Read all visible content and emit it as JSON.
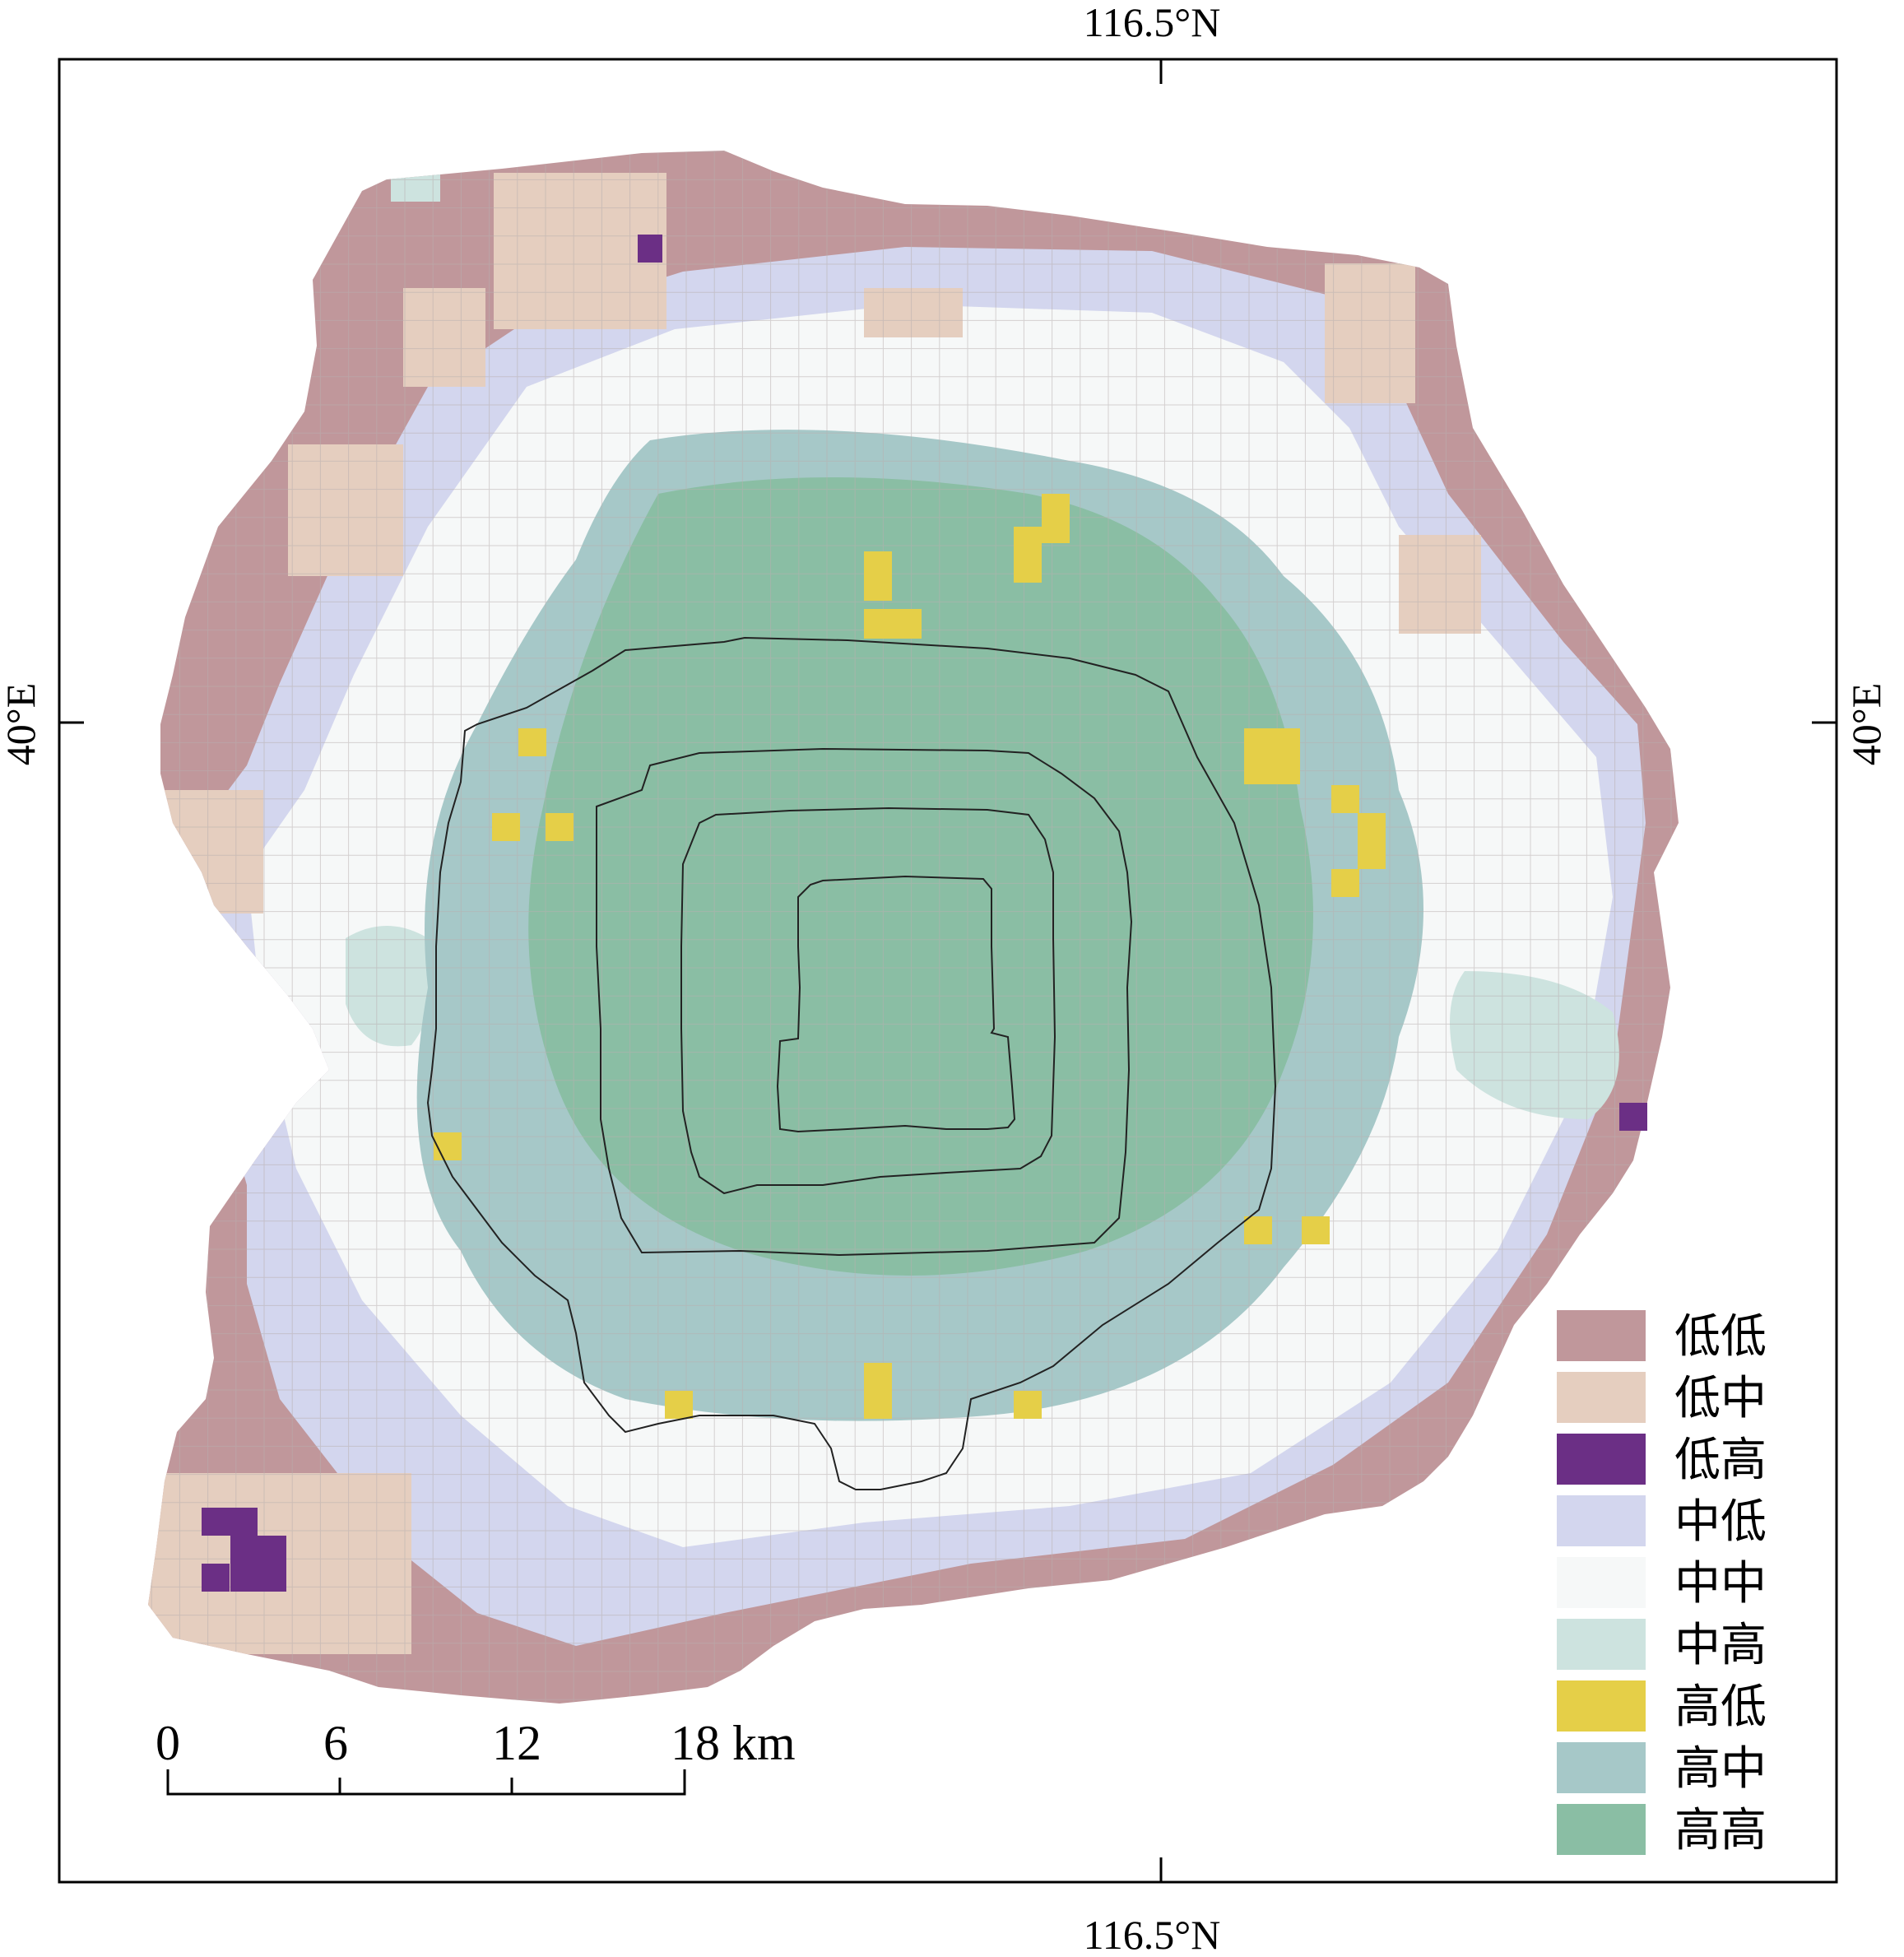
{
  "coords": {
    "top": "116.5°N",
    "bottom": "116.5°N",
    "left": "40°E",
    "right": "40°E"
  },
  "scale_bar": {
    "ticks": [
      "0",
      "6",
      "12",
      "18 km"
    ]
  },
  "legend": [
    {
      "label": "低低",
      "color": "#c0979b"
    },
    {
      "label": "低中",
      "color": "#e5cebf"
    },
    {
      "label": "低高",
      "color": "#6b2f85"
    },
    {
      "label": "中低",
      "color": "#d3d6ee"
    },
    {
      "label": "中中",
      "color": "#f6f8f8"
    },
    {
      "label": "中高",
      "color": "#cde3df"
    },
    {
      "label": "高低",
      "color": "#e5cf48"
    },
    {
      "label": "高中",
      "color": "#a6c8c8"
    },
    {
      "label": "高高",
      "color": "#8abea4"
    }
  ]
}
